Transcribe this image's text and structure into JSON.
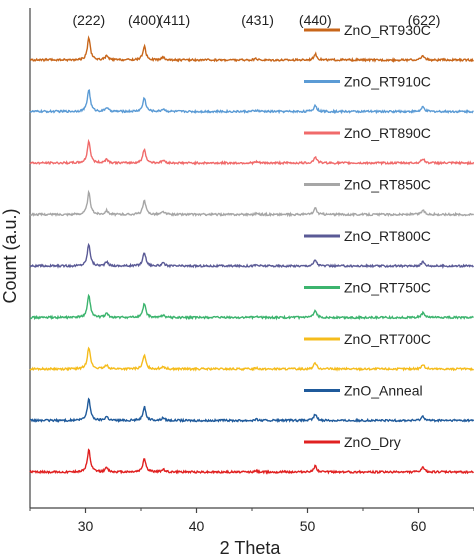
{
  "chart_data": {
    "type": "line",
    "title": "",
    "xlabel": "2 Theta",
    "ylabel": "Count (a.u.)",
    "xlim": [
      25,
      65
    ],
    "x_ticks": [
      30,
      40,
      50,
      60
    ],
    "grid": false,
    "legend_placement": "per-series labels inside plot, right side",
    "peak_labels": [
      {
        "label": "(222)",
        "x": 30.3
      },
      {
        "label": "(400)",
        "x": 35.3
      },
      {
        "label": "(411)",
        "x": 38.0
      },
      {
        "label": "(431)",
        "x": 45.5
      },
      {
        "label": "(440)",
        "x": 50.7
      },
      {
        "label": "(622)",
        "x": 60.5
      }
    ],
    "peaks": [
      {
        "x": 30.3,
        "height": 1.0
      },
      {
        "x": 31.9,
        "height": 0.18
      },
      {
        "x": 35.3,
        "height": 0.62
      },
      {
        "x": 37.0,
        "height": 0.12
      },
      {
        "x": 45.4,
        "height": 0.05
      },
      {
        "x": 50.7,
        "height": 0.28
      },
      {
        "x": 60.4,
        "height": 0.2
      }
    ],
    "series": [
      {
        "name": "ZnO_RT930C",
        "color": "#C8661A"
      },
      {
        "name": "ZnO_RT910C",
        "color": "#5B9BD5"
      },
      {
        "name": "ZnO_RT890C",
        "color": "#F06A6A"
      },
      {
        "name": "ZnO_RT850C",
        "color": "#A6A6A6"
      },
      {
        "name": "ZnO_RT800C",
        "color": "#5A5A96"
      },
      {
        "name": "ZnO_RT750C",
        "color": "#3CB46E"
      },
      {
        "name": "ZnO_RT700C",
        "color": "#F5BC1C"
      },
      {
        "name": "ZnO_Anneal",
        "color": "#1F5A9B"
      },
      {
        "name": "ZnO_Dry",
        "color": "#E02020"
      }
    ]
  }
}
